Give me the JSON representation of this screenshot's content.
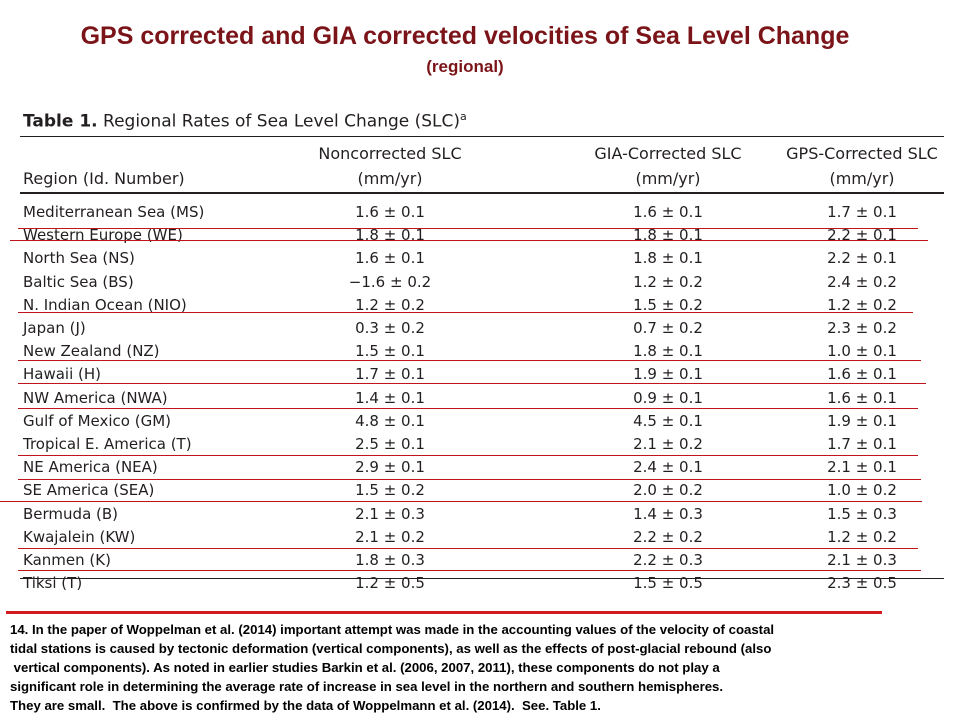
{
  "slide": {
    "title": "GPS corrected and GIA corrected velocities of Sea Level Change",
    "subtitle": "(regional)"
  },
  "table": {
    "caption_label": "Table 1.",
    "caption_text": "Regional Rates of Sea Level Change (SLC)",
    "caption_sup": "a",
    "headers": {
      "region": "Region (Id. Number)",
      "noncorrected": [
        "Noncorrected SLC",
        "(mm/yr)"
      ],
      "gia": [
        "GIA-Corrected SLC",
        "(mm/yr)"
      ],
      "gps": [
        "GPS-Corrected SLC",
        "(mm/yr)"
      ]
    },
    "rows": [
      {
        "region": "Mediterranean Sea (MS)",
        "noncorrected": "1.6 ± 0.1",
        "gia": "1.6 ± 0.1",
        "gps": "1.7 ± 0.1"
      },
      {
        "region": "Western Europe (WE)",
        "noncorrected": "1.8 ± 0.1",
        "gia": "1.8 ± 0.1",
        "gps": "2.2 ± 0.1"
      },
      {
        "region": "North Sea (NS)",
        "noncorrected": "1.6 ± 0.1",
        "gia": "1.8 ± 0.1",
        "gps": "2.2 ± 0.1"
      },
      {
        "region": "Baltic Sea (BS)",
        "noncorrected": "−1.6 ± 0.2",
        "gia": "1.2 ± 0.2",
        "gps": "2.4 ± 0.2"
      },
      {
        "region": "N. Indian Ocean (NIO)",
        "noncorrected": "1.2 ± 0.2",
        "gia": "1.5 ± 0.2",
        "gps": "1.2 ± 0.2"
      },
      {
        "region": "Japan (J)",
        "noncorrected": "0.3 ± 0.2",
        "gia": "0.7 ± 0.2",
        "gps": "2.3 ± 0.2"
      },
      {
        "region": "New Zealand (NZ)",
        "noncorrected": "1.5 ± 0.1",
        "gia": "1.8 ± 0.1",
        "gps": "1.0 ± 0.1"
      },
      {
        "region": "Hawaii (H)",
        "noncorrected": "1.7 ± 0.1",
        "gia": "1.9 ± 0.1",
        "gps": "1.6 ± 0.1"
      },
      {
        "region": "NW America (NWA)",
        "noncorrected": "1.4 ± 0.1",
        "gia": "0.9 ± 0.1",
        "gps": "1.6 ± 0.1"
      },
      {
        "region": "Gulf of Mexico (GM)",
        "noncorrected": "4.8 ± 0.1",
        "gia": "4.5 ± 0.1",
        "gps": "1.9 ± 0.1"
      },
      {
        "region": "Tropical E. America (T)",
        "noncorrected": "2.5 ± 0.1",
        "gia": "2.1 ± 0.2",
        "gps": "1.7 ± 0.1"
      },
      {
        "region": "NE America (NEA)",
        "noncorrected": "2.9 ± 0.1",
        "gia": "2.4 ± 0.1",
        "gps": "2.1 ± 0.1"
      },
      {
        "region": "SE America (SEA)",
        "noncorrected": "1.5 ± 0.2",
        "gia": "2.0 ± 0.2",
        "gps": "1.0 ± 0.2"
      },
      {
        "region": "Bermuda (B)",
        "noncorrected": "2.1 ± 0.3",
        "gia": "1.4 ± 0.3",
        "gps": "1.5 ± 0.3"
      },
      {
        "region": "Kwajalein (KW)",
        "noncorrected": "2.1 ± 0.2",
        "gia": "2.2 ± 0.2",
        "gps": "1.2 ± 0.2"
      },
      {
        "region": "Kanmen (K)",
        "noncorrected": "1.8 ± 0.3",
        "gia": "2.2 ± 0.3",
        "gps": "2.1 ± 0.3"
      },
      {
        "region": "Tiksi (T)",
        "noncorrected": "1.2 ± 0.5",
        "gia": "1.5 ± 0.5",
        "gps": "2.3 ± 0.5"
      }
    ]
  },
  "footnote": {
    "lines": [
      "14. In the paper of Woppelman et al. (2014) important attempt was made in the accounting values of the velocity of coastal",
      "tidal stations is caused by tectonic deformation (vertical components), as well as the effects of post-glacial rebound (also",
      " vertical components). As noted in earlier studies Barkin et al. (2006, 2007, 2011), these components do not play a",
      "significant role in determining the average rate of increase in sea level in the northern and southern hemispheres.",
      "They are small.  The above is confirmed by the data of Woppelmann et al. (2014).  See. Table 1."
    ]
  },
  "colors": {
    "title": "#7b1418",
    "accent_red": "#d21a1f",
    "table_text": "#231f20"
  }
}
